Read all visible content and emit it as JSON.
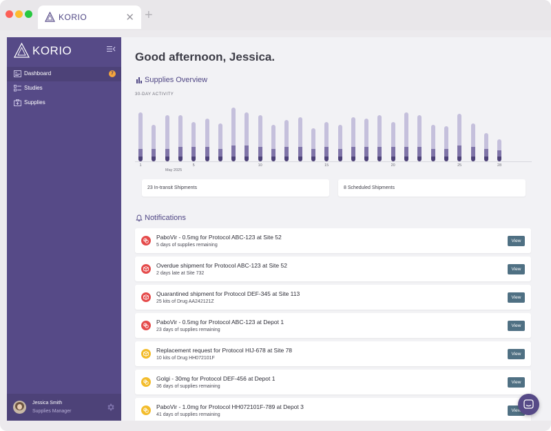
{
  "browser": {
    "tab_title": "KORIO",
    "close_glyph": "✕",
    "new_tab_glyph": "+"
  },
  "sidebar": {
    "brand": "KORIO",
    "items": [
      {
        "label": "Dashboard",
        "icon": "dashboard-icon",
        "active": true,
        "badge": "7"
      },
      {
        "label": "Studies",
        "icon": "studies-icon",
        "active": false
      },
      {
        "label": "Supplies",
        "icon": "supplies-icon",
        "active": false
      }
    ],
    "user": {
      "name": "Jessica Smith",
      "role": "Supplies Manager"
    }
  },
  "main": {
    "greeting": "Good afternoon, Jessica.",
    "supplies_overview": {
      "title": "Supplies Overview",
      "subtitle": "30-DAY ACTIVITY"
    },
    "stats": [
      {
        "label": "23 In-transit Shipments"
      },
      {
        "label": "8 Scheduled Shipments"
      }
    ],
    "notifications_title": "Notifications",
    "notifications": [
      {
        "title": "PaboVir - 0.5mg for Protocol ABC-123 at Site 52",
        "detail": "5 days of supplies remaining",
        "severity": "red",
        "icon": "pills-icon",
        "action": "View"
      },
      {
        "title": "Overdue shipment for Protocol ABC-123 at Site 52",
        "detail": "2 days late at Site 732",
        "severity": "red",
        "icon": "box-icon",
        "action": "View"
      },
      {
        "title": "Quarantined shipment for Protocol DEF-345 at Site 113",
        "detail": "25 kits of Drug AA242121Z",
        "severity": "red",
        "icon": "box-icon",
        "action": "View"
      },
      {
        "title": "PaboVir - 0.5mg for Protocol ABC-123 at Depot 1",
        "detail": "23 days of supplies remaining",
        "severity": "red",
        "icon": "pills-icon",
        "action": "View"
      },
      {
        "title": "Replacement request for Protocol HIJ-678 at Site 78",
        "detail": "10 kits of Drug HH072101F",
        "severity": "yellow",
        "icon": "box-icon",
        "action": "View"
      },
      {
        "title": "Golgi - 30mg for Protocol DEF-456 at Depot 1",
        "detail": "36 days of supplies remaining",
        "severity": "yellow",
        "icon": "pills-icon",
        "action": "View"
      },
      {
        "title": "PaboVir - 1.0mg for Protocol HH072101F-789 at Depot 3",
        "detail": "41 days of supplies remaining",
        "severity": "yellow",
        "icon": "pills-icon",
        "action": "View"
      }
    ]
  },
  "colors": {
    "sidebar": "#564a87",
    "accent": "#4f4684",
    "bar_light": "#c5c0dc",
    "bar_mid": "#7f74a8",
    "bar_dark": "#4d4278",
    "alert_red": "#e54b4b",
    "alert_yellow": "#f3bc2b",
    "button": "#4f7083",
    "badge": "#f4a53c"
  },
  "chart_data": {
    "type": "bar",
    "stacked": true,
    "categories": [
      "1",
      "2",
      "3",
      "4",
      "5",
      "6",
      "7",
      "8",
      "9",
      "10",
      "11",
      "12",
      "13",
      "14",
      "15",
      "16",
      "17",
      "18",
      "19",
      "20",
      "21",
      "22",
      "23",
      "24",
      "25",
      "26",
      "27",
      "28"
    ],
    "x_tick_labels": [
      "1",
      "5",
      "10",
      "15",
      "20",
      "25",
      "28"
    ],
    "month_label": "May 2025",
    "series": [
      {
        "values": [
          3,
          3,
          3,
          3,
          3,
          3,
          3,
          3,
          3,
          3,
          3,
          3,
          3,
          3,
          3,
          3,
          3,
          3,
          3,
          3,
          3,
          3,
          3,
          3,
          3,
          3,
          3,
          3
        ]
      },
      {
        "values": [
          5,
          5,
          5,
          6,
          6,
          6,
          5,
          7,
          7,
          6,
          5,
          6,
          6,
          5,
          6,
          5,
          6,
          6,
          6,
          6,
          6,
          6,
          5,
          5,
          7,
          6,
          5,
          4
        ]
      },
      {
        "values": [
          23,
          15,
          21,
          20,
          16,
          18,
          16,
          24,
          21,
          20,
          15,
          17,
          19,
          13,
          16,
          15,
          19,
          18,
          20,
          16,
          22,
          20,
          15,
          14,
          20,
          15,
          10,
          7
        ]
      }
    ]
  }
}
